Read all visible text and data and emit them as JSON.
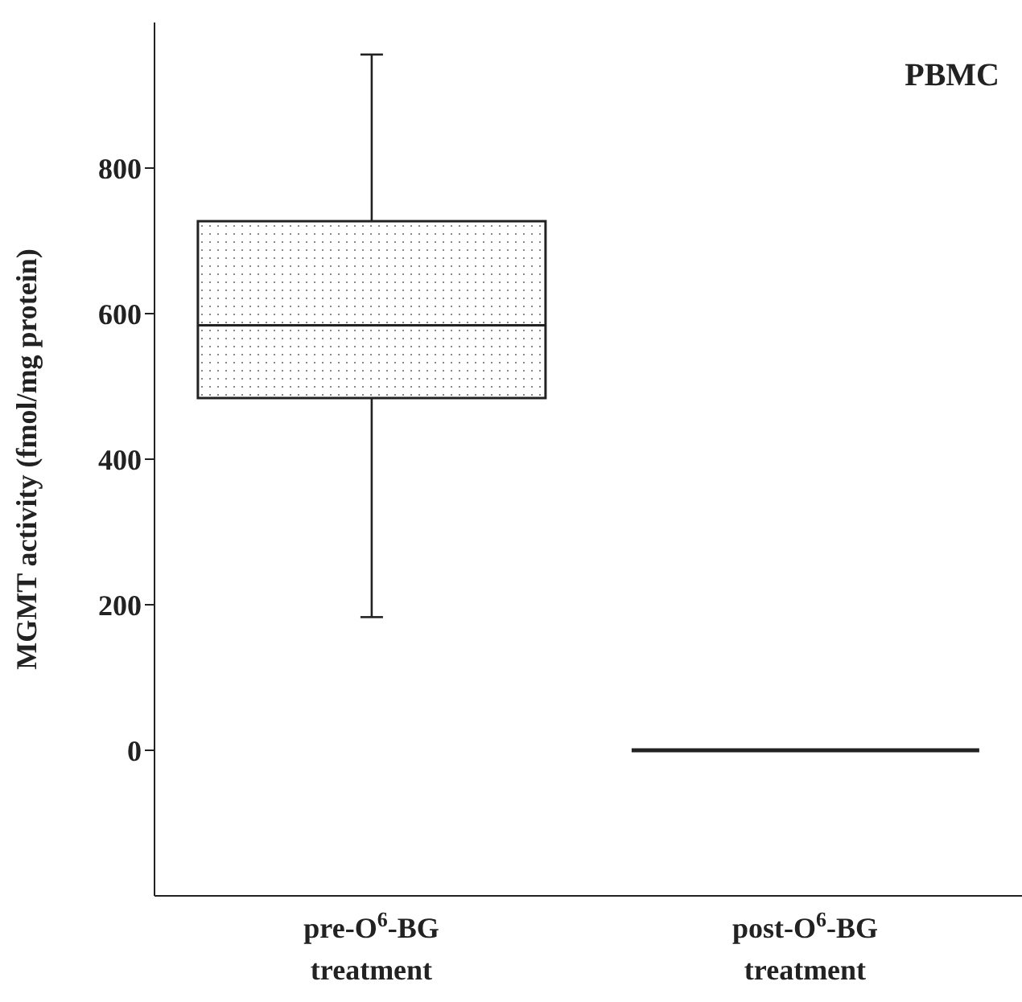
{
  "chart_data": {
    "type": "box",
    "ylabel": "MGMT activity (fmol/mg protein)",
    "categories": [
      "pre-O$^{6}$-BG treatment",
      "post-O$^{6}$-BG treatment"
    ],
    "boxes": [
      {
        "low": 183,
        "q1": 484,
        "median": 584,
        "q3": 727,
        "high": 956
      },
      {
        "low": 0,
        "q1": 0,
        "median": 0,
        "q3": 0,
        "high": 0
      }
    ],
    "ylim": [
      -200,
      1000
    ],
    "yticks": [
      0,
      200,
      400,
      600,
      800
    ],
    "annotations": [
      "PBMC"
    ]
  }
}
